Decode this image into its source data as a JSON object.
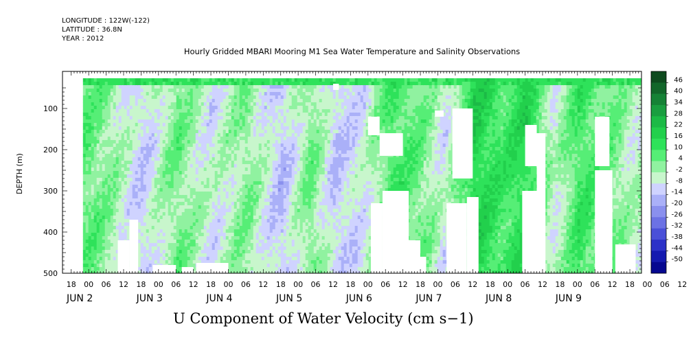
{
  "header": {
    "longitude": "LONGITUDE : 122W(-122)",
    "latitude": "LATITUDE : 36.8N",
    "year": "YEAR : 2012",
    "title": "Hourly Gridded MBARI Mooring M1 Sea Water Temperature and Salinity Observations"
  },
  "footer": {
    "variable_label": "U Component of Water Velocity (cm s−1)"
  },
  "chart_data": {
    "type": "heatmap",
    "title": "Hourly Gridded MBARI Mooring M1 Sea Water Temperature and Salinity Observations",
    "variable": "U Component of Water Velocity (cm s−1)",
    "ylabel": "DEPTH (m)",
    "y_ticks": [
      100,
      200,
      300,
      400,
      500
    ],
    "y_range": [
      10,
      500
    ],
    "y_inverted": true,
    "x_range_hours": [
      "2012-06-01T15:00",
      "2012-06-09T22:00"
    ],
    "x_hour_ticks": [
      "18",
      "00",
      "06",
      "12",
      "18",
      "00",
      "06",
      "12",
      "18",
      "00",
      "06",
      "12",
      "18",
      "00",
      "06",
      "12",
      "18",
      "00",
      "06",
      "12",
      "18",
      "00",
      "06",
      "12",
      "18",
      "00",
      "06",
      "12",
      "18",
      "00",
      "06",
      "12",
      "18",
      "00",
      "06",
      "12"
    ],
    "x_day_labels": [
      "JUN  2",
      "JUN  3",
      "JUN  4",
      "JUN  5",
      "JUN  6",
      "JUN  7",
      "JUN  8",
      "JUN  9"
    ],
    "colorbar_levels": [
      48,
      46,
      40,
      34,
      28,
      22,
      16,
      10,
      4,
      -2,
      -8,
      -14,
      -20,
      -26,
      -32,
      -38,
      -44,
      -50
    ],
    "colorbar_labels": [
      "46",
      "40",
      "34",
      "28",
      "22",
      "16",
      "10",
      "4",
      "-2",
      "-8",
      "-14",
      "-20",
      "-26",
      "-32",
      "-38",
      "-44",
      "-50"
    ],
    "colorbar_colors": [
      "#0e4a1e",
      "#12662a",
      "#168236",
      "#1a9e40",
      "#1cba46",
      "#22d04c",
      "#2ee25a",
      "#56ee76",
      "#90f2a0",
      "#c8f6cc",
      "#cfd3ff",
      "#aab0f8",
      "#8a90ee",
      "#6c72e4",
      "#4a50d8",
      "#2c32c8",
      "#141ab0",
      "#060890"
    ],
    "time_bands": [
      {
        "day": "2012-06-01",
        "hour": 22,
        "u": 6
      },
      {
        "day": "2012-06-02",
        "hour": 6,
        "u": 2
      },
      {
        "day": "2012-06-02",
        "hour": 18,
        "u": -12
      },
      {
        "day": "2012-06-03",
        "hour": 6,
        "u": 4
      },
      {
        "day": "2012-06-03",
        "hour": 18,
        "u": -8
      },
      {
        "day": "2012-06-04",
        "hour": 6,
        "u": 2
      },
      {
        "day": "2012-06-04",
        "hour": 18,
        "u": -14
      },
      {
        "day": "2012-06-05",
        "hour": 4,
        "u": 4
      },
      {
        "day": "2012-06-05",
        "hour": 12,
        "u": -12
      },
      {
        "day": "2012-06-05",
        "hour": 22,
        "u": -8
      },
      {
        "day": "2012-06-06",
        "hour": 8,
        "u": 10
      },
      {
        "day": "2012-06-06",
        "hour": 18,
        "u": 4
      },
      {
        "day": "2012-06-07",
        "hour": 2,
        "u": -8
      },
      {
        "day": "2012-06-07",
        "hour": 12,
        "u": 18
      },
      {
        "day": "2012-06-07",
        "hour": 22,
        "u": 10
      },
      {
        "day": "2012-06-08",
        "hour": 6,
        "u": 16
      },
      {
        "day": "2012-06-08",
        "hour": 16,
        "u": -6
      },
      {
        "day": "2012-06-09",
        "hour": 0,
        "u": 10
      },
      {
        "day": "2012-06-09",
        "hour": 10,
        "u": 6
      },
      {
        "day": "2012-06-09",
        "hour": 18,
        "u": -4
      }
    ]
  }
}
